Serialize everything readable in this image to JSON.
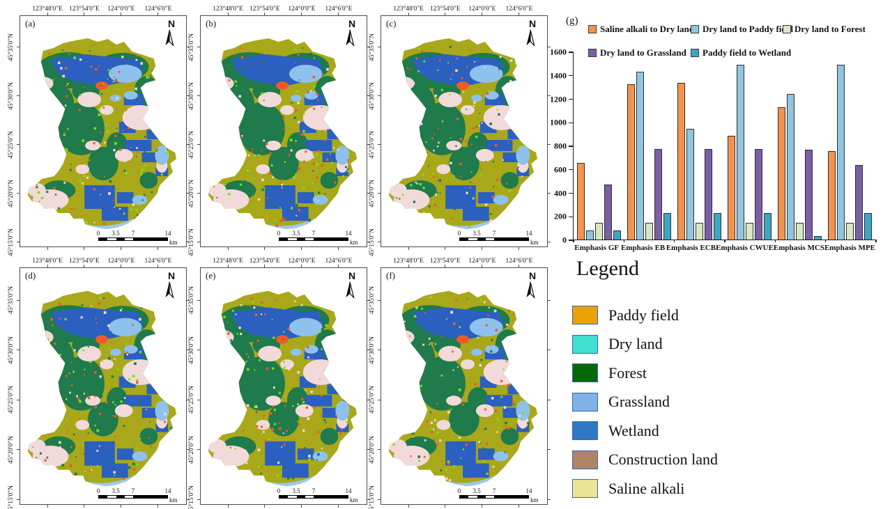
{
  "map_panels": {
    "labels": [
      "(a)",
      "(b)",
      "(c)",
      "(d)",
      "(e)",
      "(f)"
    ],
    "north_label": "N",
    "lon_ticks": [
      "123°48'0\"E",
      "123°54'0\"E",
      "124°0'0\"E",
      "124°6'0\"E"
    ],
    "lat_ticks": [
      "45°35'0\"N",
      "45°30'0\"N",
      "45°25'0\"N",
      "45°20'0\"N",
      "45°15'0\"N"
    ],
    "scalebar": {
      "ticks": [
        "0",
        "3.5",
        "7",
        "14"
      ],
      "unit": "km"
    },
    "map_colors": {
      "base_olive": "#a8a81a",
      "forest": "#1f7a4c",
      "wetland": "#2b5fc0",
      "pink": "#f2dada",
      "grassland": "#8ec1ed",
      "river": "#9cc8f0",
      "orange": "#f05a28",
      "bright_green": "#7de019"
    }
  },
  "chart": {
    "panel_label": "(g)"
  },
  "chart_data": {
    "type": "bar",
    "categories": [
      "Emphasis GF",
      "Emphasis EB",
      "Emphasis ECB",
      "Emphasis CWUE",
      "Emphasis MCS",
      "Emphasis MPE"
    ],
    "series": [
      {
        "name": "Saline alkali  to Dry land",
        "color": "#f2944d",
        "values": [
          650,
          1320,
          1335,
          885,
          1125,
          750
        ]
      },
      {
        "name": "Dry land to Paddy field",
        "color": "#92c5de",
        "values": [
          75,
          1430,
          940,
          1490,
          1240,
          1485
        ]
      },
      {
        "name": "Dry land to Forest",
        "color": "#d9e6c3",
        "values": [
          145,
          145,
          145,
          145,
          140,
          140
        ]
      },
      {
        "name": "Dry land to Grassland",
        "color": "#7a5fa5",
        "values": [
          470,
          770,
          770,
          770,
          765,
          635
        ]
      },
      {
        "name": "Paddy field to Wetland",
        "color": "#3ea6c2",
        "values": [
          75,
          225,
          225,
          225,
          30,
          225
        ]
      }
    ],
    "title": "",
    "xlabel": "",
    "ylabel": "",
    "ylim": [
      0,
      1600
    ],
    "ytick_step": 200,
    "grid": false,
    "legend_position": "top"
  },
  "map_legend": {
    "title": "Legend",
    "swatch_border": "#3c64b4",
    "items": [
      {
        "label": "Paddy field",
        "color": "#e8a303"
      },
      {
        "label": "Dry land",
        "color": "#40dece"
      },
      {
        "label": "Forest",
        "color": "#066806"
      },
      {
        "label": "Grassland",
        "color": "#7fb2e5"
      },
      {
        "label": "Wetland",
        "color": "#2e78c6"
      },
      {
        "label": "Construction land",
        "color": "#b08566"
      },
      {
        "label": "Saline alkali",
        "color": "#eae495"
      }
    ]
  }
}
